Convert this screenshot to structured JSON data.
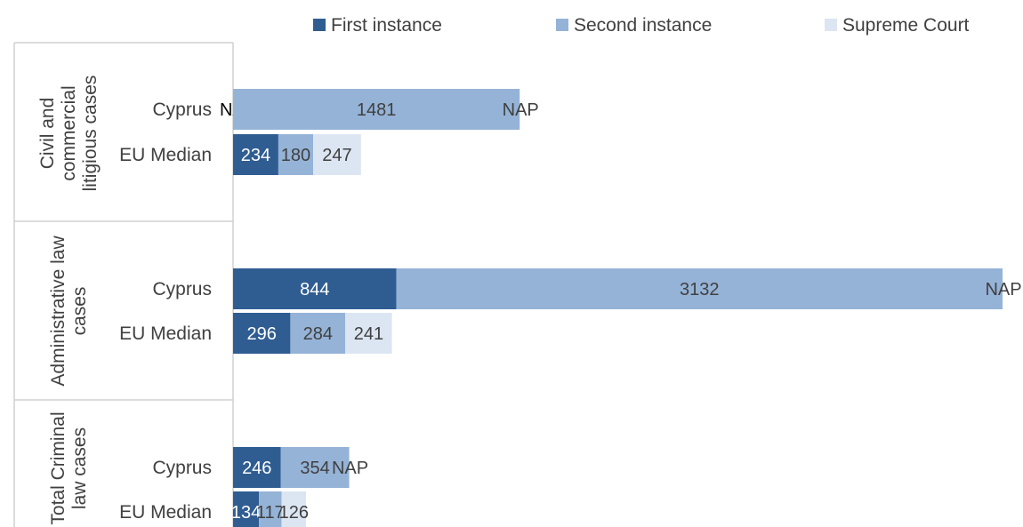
{
  "chart_data": {
    "type": "bar",
    "orientation": "horizontal",
    "stacked": true,
    "legend_position": "top",
    "series": [
      {
        "name": "First instance",
        "color": "#2f5d92"
      },
      {
        "name": "Second instance",
        "color": "#95b3d7"
      },
      {
        "name": "Supreme Court",
        "color": "#dce6f2"
      }
    ],
    "groups": [
      {
        "label_lines": [
          "Civil and",
          "commercial",
          "litigious cases"
        ],
        "bars": [
          {
            "category": "Cyprus",
            "values": [
              null,
              1481,
              null
            ],
            "labels": [
              "NA",
              "1481",
              "NAP"
            ]
          },
          {
            "category": "EU Median",
            "values": [
              234,
              180,
              247
            ],
            "labels": [
              "234",
              "180",
              "247"
            ]
          }
        ]
      },
      {
        "label_lines": [
          "Administrative law",
          "cases"
        ],
        "bars": [
          {
            "category": "Cyprus",
            "values": [
              844,
              3132,
              null
            ],
            "labels": [
              "844",
              "3132",
              "NAP"
            ]
          },
          {
            "category": "EU Median",
            "values": [
              296,
              284,
              241
            ],
            "labels": [
              "296",
              "284",
              "241"
            ]
          }
        ]
      },
      {
        "label_lines": [
          "Total Criminal",
          "law cases"
        ],
        "bars": [
          {
            "category": "Cyprus",
            "values": [
              246,
              354,
              null
            ],
            "labels": [
              "246",
              "354",
              "NAP"
            ]
          },
          {
            "category": "EU Median",
            "values": [
              134,
              117,
              126
            ],
            "labels": [
              "134",
              "117",
              "126"
            ]
          }
        ]
      }
    ],
    "xlim": [
      0,
      4000
    ]
  }
}
